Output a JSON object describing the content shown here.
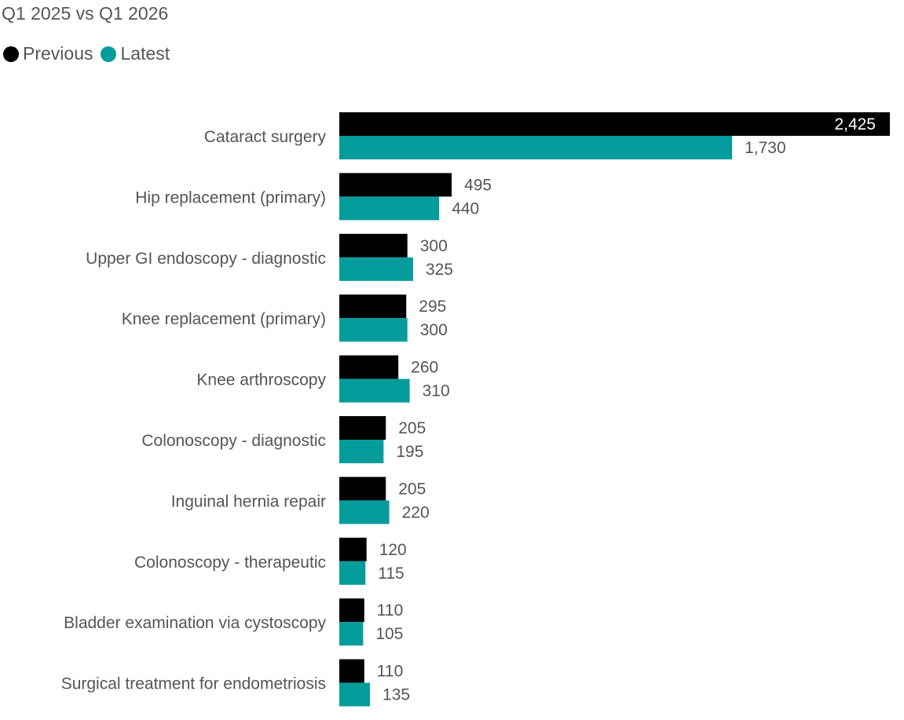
{
  "subtitle": "Q1 2025 vs Q1 2026",
  "colors": {
    "previous": "#000000",
    "latest": "#079C9C",
    "text": "#555555"
  },
  "chart_data": {
    "type": "bar",
    "orientation": "horizontal",
    "subtitle": "Q1 2025 vs Q1 2026",
    "legend_position": "top-left",
    "grid": false,
    "xlim": [
      0,
      2425
    ],
    "categories": [
      "Cataract surgery",
      "Hip replacement (primary)",
      "Upper GI endoscopy - diagnostic",
      "Knee replacement (primary)",
      "Knee arthroscopy",
      "Colonoscopy - diagnostic",
      "Inguinal hernia repair",
      "Colonoscopy - therapeutic",
      "Bladder examination via cystoscopy",
      "Surgical treatment for endometriosis"
    ],
    "series": [
      {
        "name": "Previous",
        "values": [
          2425,
          495,
          300,
          295,
          260,
          205,
          205,
          120,
          110,
          110
        ],
        "labels": [
          "2,425",
          "495",
          "300",
          "295",
          "260",
          "205",
          "205",
          "120",
          "110",
          "110"
        ]
      },
      {
        "name": "Latest",
        "values": [
          1730,
          440,
          325,
          300,
          310,
          195,
          220,
          115,
          105,
          135
        ],
        "labels": [
          "1,730",
          "440",
          "325",
          "300",
          "310",
          "195",
          "220",
          "115",
          "105",
          "135"
        ]
      }
    ]
  }
}
